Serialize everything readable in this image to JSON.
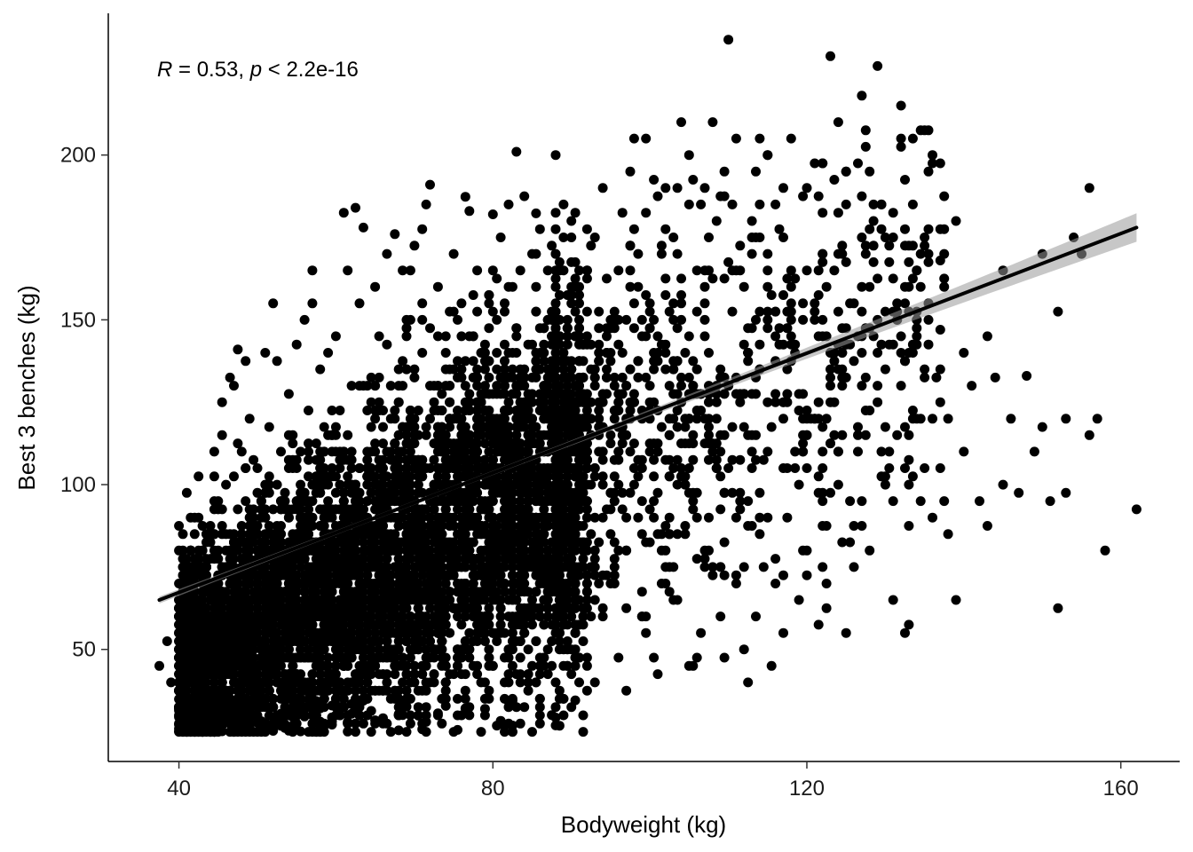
{
  "chart_data": {
    "type": "scatter",
    "title": "",
    "xlabel": "Bodyweight (kg)",
    "ylabel": "Best 3 benches (kg)",
    "xlim": [
      31,
      167.5
    ],
    "ylim": [
      16,
      243
    ],
    "xticks": [
      40,
      80,
      120,
      160
    ],
    "yticks": [
      50,
      100,
      150,
      200
    ],
    "grid": false,
    "legend": "none",
    "annotation": {
      "r_symbol": "R",
      "r_text": " = 0.53, ",
      "p_symbol": "p",
      "p_text": " < 2.2e-16"
    },
    "colors": {
      "points": "#000000",
      "line": "#000000",
      "band": "#999999",
      "axis": "#000000"
    },
    "fit_line": {
      "x": [
        37.5,
        162
      ],
      "y": [
        65,
        178
      ]
    },
    "points": [
      [
        37.5,
        45
      ],
      [
        38.5,
        52.5
      ],
      [
        39,
        40
      ],
      [
        40,
        47.5
      ],
      [
        40.5,
        60
      ],
      [
        41,
        65
      ],
      [
        41.5,
        55
      ],
      [
        42,
        25
      ],
      [
        42,
        42.5
      ],
      [
        42.5,
        102.5
      ],
      [
        42.5,
        90
      ],
      [
        43,
        75
      ],
      [
        43,
        57.5
      ],
      [
        43.5,
        30
      ],
      [
        44,
        70
      ],
      [
        44,
        35
      ],
      [
        44.5,
        95
      ],
      [
        44.5,
        85
      ],
      [
        45,
        27.5
      ],
      [
        45,
        60
      ],
      [
        45.5,
        115
      ],
      [
        45.5,
        125
      ],
      [
        46,
        37.5
      ],
      [
        46,
        100
      ],
      [
        46.5,
        132.5
      ],
      [
        46.5,
        80
      ],
      [
        47,
        25
      ],
      [
        47,
        130
      ],
      [
        47.5,
        67.5
      ],
      [
        47.5,
        141
      ],
      [
        48,
        110
      ],
      [
        48,
        27.5
      ],
      [
        48.5,
        137.5
      ],
      [
        48.5,
        50
      ],
      [
        49,
        120
      ],
      [
        49,
        92.5
      ],
      [
        49.5,
        25
      ],
      [
        50,
        105
      ],
      [
        50,
        45
      ],
      [
        50.5,
        82.5
      ],
      [
        51,
        140
      ],
      [
        51,
        60
      ],
      [
        51.5,
        117.5
      ],
      [
        52,
        155
      ],
      [
        52,
        27.5
      ],
      [
        52.5,
        137.5
      ],
      [
        53,
        95
      ],
      [
        53,
        72.5
      ],
      [
        54,
        127.5
      ],
      [
        54,
        40
      ],
      [
        55,
        142.5
      ],
      [
        55,
        30
      ],
      [
        55.5,
        110
      ],
      [
        56,
        150
      ],
      [
        56,
        52.5
      ],
      [
        57,
        155
      ],
      [
        57,
        165
      ],
      [
        57.5,
        25
      ],
      [
        58,
        135
      ],
      [
        58,
        75
      ],
      [
        58.5,
        100
      ],
      [
        59,
        140
      ],
      [
        59,
        42.5
      ],
      [
        60,
        145
      ],
      [
        60,
        60
      ],
      [
        60.5,
        122.5
      ],
      [
        61,
        182.5
      ],
      [
        61,
        35
      ],
      [
        61.5,
        165
      ],
      [
        62,
        130
      ],
      [
        62,
        80
      ],
      [
        62.5,
        184
      ],
      [
        63,
        55
      ],
      [
        63,
        155
      ],
      [
        63.5,
        178
      ],
      [
        64,
        110
      ],
      [
        64,
        40
      ],
      [
        65,
        160
      ],
      [
        65,
        95
      ],
      [
        65.5,
        145
      ],
      [
        66,
        27.5
      ],
      [
        66.5,
        170
      ],
      [
        67,
        130
      ],
      [
        67,
        65
      ],
      [
        67.5,
        176
      ],
      [
        68,
        100
      ],
      [
        68,
        30
      ],
      [
        69,
        150
      ],
      [
        69,
        45
      ],
      [
        69.5,
        165
      ],
      [
        70,
        115
      ],
      [
        70,
        172.5
      ],
      [
        71,
        75
      ],
      [
        71,
        140
      ],
      [
        71.5,
        185
      ],
      [
        72,
        90
      ],
      [
        72,
        191
      ],
      [
        72.5,
        50
      ],
      [
        73,
        160
      ],
      [
        73,
        130
      ],
      [
        74,
        35
      ],
      [
        74,
        110
      ],
      [
        75,
        170
      ],
      [
        75,
        82.5
      ],
      [
        75.5,
        150
      ],
      [
        76,
        62.5
      ],
      [
        76,
        120
      ],
      [
        77,
        183
      ],
      [
        77,
        100
      ],
      [
        77.5,
        145
      ],
      [
        78,
        55
      ],
      [
        78,
        165
      ],
      [
        79,
        30
      ],
      [
        79,
        130
      ],
      [
        80,
        182
      ],
      [
        80,
        70
      ],
      [
        80.5,
        150
      ],
      [
        81,
        115
      ],
      [
        81,
        175
      ],
      [
        81.5,
        25
      ],
      [
        82,
        185
      ],
      [
        82,
        90
      ],
      [
        82.5,
        160
      ],
      [
        83,
        201
      ],
      [
        83,
        140
      ],
      [
        83.5,
        52.5
      ],
      [
        84,
        187.5
      ],
      [
        84,
        120
      ],
      [
        84.5,
        75
      ],
      [
        85,
        25
      ],
      [
        85,
        170
      ],
      [
        85.5,
        100
      ],
      [
        86,
        135
      ],
      [
        86,
        60
      ],
      [
        87,
        165
      ],
      [
        87,
        110
      ],
      [
        87.5,
        45
      ],
      [
        88,
        155
      ],
      [
        88,
        90
      ],
      [
        89,
        127.5
      ],
      [
        89,
        35
      ],
      [
        90,
        175
      ],
      [
        90,
        105
      ],
      [
        90.5,
        65
      ],
      [
        91,
        145
      ],
      [
        91,
        57.5
      ],
      [
        92,
        120
      ],
      [
        92,
        162.5
      ],
      [
        92.5,
        85
      ],
      [
        93,
        40
      ],
      [
        93.5,
        140
      ],
      [
        94,
        110
      ],
      [
        94,
        190
      ],
      [
        95,
        70
      ],
      [
        95,
        150
      ],
      [
        95.5,
        97.5
      ],
      [
        96,
        125
      ],
      [
        96,
        165
      ],
      [
        97,
        80
      ],
      [
        97,
        37.5
      ],
      [
        97.5,
        135
      ],
      [
        98,
        105
      ],
      [
        98,
        177.5
      ],
      [
        99,
        150
      ],
      [
        99,
        60
      ],
      [
        99.5,
        205
      ],
      [
        100,
        130
      ],
      [
        100,
        110
      ],
      [
        100.5,
        192.5
      ],
      [
        101,
        42.5
      ],
      [
        101,
        85
      ],
      [
        102,
        140
      ],
      [
        102,
        190
      ],
      [
        102.5,
        115
      ],
      [
        103,
        65
      ],
      [
        103,
        175
      ],
      [
        104,
        130
      ],
      [
        104,
        210
      ],
      [
        104.5,
        100
      ],
      [
        105,
        45
      ],
      [
        105,
        185
      ],
      [
        106,
        165
      ],
      [
        106,
        120
      ],
      [
        106.5,
        55
      ],
      [
        107,
        190
      ],
      [
        107,
        145
      ],
      [
        108,
        75
      ],
      [
        108,
        210
      ],
      [
        108.5,
        180
      ],
      [
        109,
        110
      ],
      [
        109,
        60
      ],
      [
        110,
        235
      ],
      [
        110,
        130
      ],
      [
        110.5,
        185
      ],
      [
        111,
        90
      ],
      [
        111,
        205
      ],
      [
        112,
        160
      ],
      [
        112,
        75
      ],
      [
        112.5,
        140
      ],
      [
        113,
        180
      ],
      [
        113,
        115
      ],
      [
        114,
        205
      ],
      [
        114,
        85
      ],
      [
        115,
        150
      ],
      [
        115,
        200
      ],
      [
        116,
        125
      ],
      [
        116,
        70
      ],
      [
        117,
        190
      ],
      [
        117,
        55
      ],
      [
        118,
        145
      ],
      [
        118,
        165
      ],
      [
        119,
        100
      ],
      [
        120,
        190
      ],
      [
        120,
        80
      ],
      [
        121,
        155
      ],
      [
        121,
        120
      ],
      [
        122,
        170
      ],
      [
        122,
        95
      ],
      [
        123,
        230
      ],
      [
        123,
        140
      ],
      [
        124,
        210
      ],
      [
        124,
        110
      ],
      [
        125,
        55
      ],
      [
        125,
        185
      ],
      [
        126,
        155
      ],
      [
        126,
        75
      ],
      [
        127,
        218
      ],
      [
        127,
        130
      ],
      [
        128,
        195
      ],
      [
        128,
        80
      ],
      [
        129,
        227
      ],
      [
        129,
        150
      ],
      [
        130,
        175
      ],
      [
        130,
        100
      ],
      [
        131,
        65
      ],
      [
        132,
        215
      ],
      [
        132,
        130
      ],
      [
        133,
        57.5
      ],
      [
        133,
        87.5
      ],
      [
        134,
        120
      ],
      [
        134,
        150
      ],
      [
        135,
        105
      ],
      [
        136,
        200
      ],
      [
        136,
        90
      ],
      [
        137,
        168
      ],
      [
        137,
        147
      ],
      [
        138,
        85
      ],
      [
        138,
        120
      ],
      [
        139,
        180
      ],
      [
        139,
        65
      ],
      [
        140,
        140
      ],
      [
        140,
        110
      ],
      [
        141,
        130
      ],
      [
        142,
        95
      ],
      [
        143,
        145
      ],
      [
        143,
        87.5
      ],
      [
        144,
        132.5
      ],
      [
        145,
        165
      ],
      [
        145,
        100
      ],
      [
        146,
        120
      ],
      [
        147,
        97.5
      ],
      [
        148,
        133
      ],
      [
        149,
        110
      ],
      [
        150,
        117.5
      ],
      [
        150,
        170
      ],
      [
        151,
        95
      ],
      [
        152,
        152.5
      ],
      [
        152,
        62.5
      ],
      [
        153,
        120
      ],
      [
        153,
        97.5
      ],
      [
        154,
        175
      ],
      [
        155,
        170
      ],
      [
        156,
        190
      ],
      [
        156,
        115
      ],
      [
        157,
        120
      ],
      [
        158,
        80
      ],
      [
        162,
        92.5
      ]
    ]
  }
}
